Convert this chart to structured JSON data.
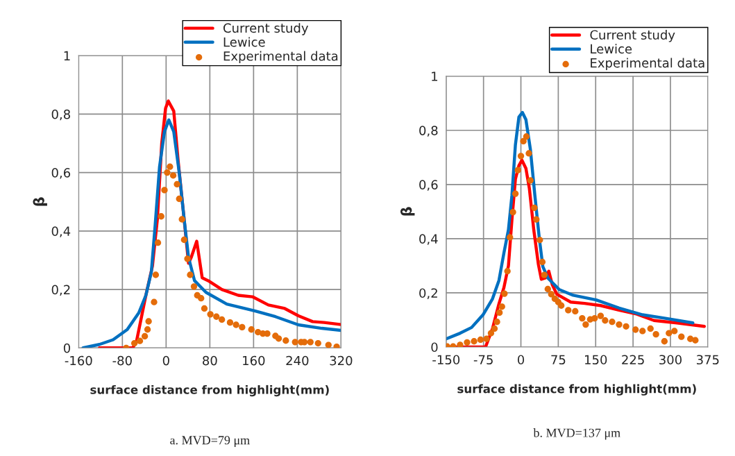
{
  "chart_data": [
    {
      "type": "line",
      "xlabel": "surface distance from highlight(mm)",
      "ylabel": "β",
      "xlim": [
        -160,
        320
      ],
      "xticks": [
        -160,
        -80,
        0,
        80,
        160,
        240,
        320
      ],
      "ylim": [
        0,
        1
      ],
      "yticks": [
        0,
        {
          "value": 0.2,
          "label": "0,2"
        },
        {
          "value": 0.4,
          "label": "0,4"
        },
        {
          "value": 0.6,
          "label": "0,6"
        },
        {
          "value": 0.8,
          "label": "0,8"
        },
        1
      ],
      "grid": true,
      "legend": "top right",
      "annotations": [
        "a. MVD=79 μm"
      ],
      "series": [
        {
          "name": "Current study",
          "color": "#ff0000",
          "x": [
            -122,
            -61,
            -54,
            -37,
            -25,
            -16,
            -8,
            -1,
            4,
            14,
            22,
            33,
            41,
            46,
            56,
            66,
            77,
            102,
            132,
            158,
            187,
            217,
            242,
            268,
            289,
            320
          ],
          "values": [
            0,
            0,
            0.024,
            0.18,
            0.28,
            0.44,
            0.7,
            0.82,
            0.845,
            0.81,
            0.64,
            0.44,
            0.29,
            0.31,
            0.365,
            0.24,
            0.23,
            0.2,
            0.18,
            0.175,
            0.147,
            0.135,
            0.11,
            0.09,
            0.087,
            0.08
          ]
        },
        {
          "name": "Lewice",
          "color": "#0070c0",
          "x": [
            -152,
            -122,
            -97,
            -71,
            -50,
            -37,
            -27,
            -20,
            -12,
            -3,
            5,
            14,
            24,
            33,
            41,
            52,
            73,
            111,
            162,
            200,
            242,
            285,
            320
          ],
          "values": [
            0,
            0.012,
            0.028,
            0.063,
            0.12,
            0.18,
            0.26,
            0.42,
            0.62,
            0.74,
            0.78,
            0.74,
            0.6,
            0.44,
            0.31,
            0.23,
            0.19,
            0.15,
            0.127,
            0.107,
            0.079,
            0.067,
            0.06
          ]
        },
        {
          "name": "Experimental data",
          "color": "#e46c0a",
          "type": "scatter",
          "marker": "circle",
          "x": [
            -73,
            -58,
            -48,
            -39,
            -34,
            -32,
            -22,
            -19,
            -15,
            -9,
            -3,
            2,
            7,
            13,
            20,
            24,
            29,
            33,
            39,
            44,
            51,
            57,
            64,
            70,
            81,
            92,
            102,
            117,
            128,
            139,
            156,
            168,
            177,
            185,
            200,
            206,
            219,
            236,
            247,
            253,
            264,
            278,
            297,
            312
          ],
          "values": [
            0,
            0.016,
            0.024,
            0.04,
            0.063,
            0.091,
            0.157,
            0.25,
            0.36,
            0.45,
            0.54,
            0.6,
            0.62,
            0.59,
            0.56,
            0.51,
            0.44,
            0.37,
            0.305,
            0.25,
            0.21,
            0.18,
            0.17,
            0.135,
            0.115,
            0.107,
            0.097,
            0.087,
            0.079,
            0.071,
            0.063,
            0.054,
            0.049,
            0.049,
            0.041,
            0.032,
            0.025,
            0.02,
            0.02,
            0.02,
            0.02,
            0.016,
            0.01,
            0.004
          ]
        }
      ]
    },
    {
      "type": "line",
      "xlabel": "surface distance from highlight(mm)",
      "ylabel": "β",
      "xlim": [
        -150,
        375
      ],
      "xticks": [
        -150,
        -75,
        0,
        75,
        150,
        225,
        300,
        375
      ],
      "ylim": [
        0,
        1
      ],
      "yticks": [
        0,
        {
          "value": 0.2,
          "label": "0,2"
        },
        {
          "value": 0.4,
          "label": "0,4"
        },
        {
          "value": 0.6,
          "label": "0,6"
        },
        {
          "value": 0.8,
          "label": "0,8"
        },
        1
      ],
      "grid": true,
      "legend": "top right",
      "annotations": [
        "b. MVD=137 μm"
      ],
      "series": [
        {
          "name": "Current study",
          "color": "#ff0000",
          "x": [
            -150,
            -71,
            -57,
            -44,
            -34,
            -25,
            -18,
            -11,
            -4,
            2,
            10,
            17,
            26,
            35,
            41,
            49,
            56,
            63,
            72,
            100,
            128,
            160,
            197,
            230,
            267,
            313,
            368
          ],
          "values": [
            0,
            0,
            0.068,
            0.16,
            0.22,
            0.3,
            0.47,
            0.62,
            0.67,
            0.69,
            0.66,
            0.585,
            0.43,
            0.306,
            0.25,
            0.255,
            0.28,
            0.23,
            0.195,
            0.166,
            0.161,
            0.153,
            0.136,
            0.123,
            0.098,
            0.089,
            0.076
          ]
        },
        {
          "name": "Lewice",
          "color": "#0070c0",
          "x": [
            -150,
            -122,
            -99,
            -76,
            -57,
            -44,
            -34,
            -25,
            -18,
            -11,
            -4,
            3,
            10,
            19,
            28,
            37,
            44,
            54,
            77,
            105,
            151,
            197,
            244,
            290,
            345
          ],
          "values": [
            0.03,
            0.051,
            0.072,
            0.119,
            0.178,
            0.246,
            0.348,
            0.433,
            0.56,
            0.747,
            0.849,
            0.866,
            0.84,
            0.73,
            0.56,
            0.4,
            0.297,
            0.255,
            0.212,
            0.191,
            0.174,
            0.144,
            0.119,
            0.106,
            0.089
          ]
        },
        {
          "name": "Experimental data",
          "color": "#e46c0a",
          "type": "scatter",
          "marker": "circle",
          "x": [
            -148,
            -136,
            -122,
            -108,
            -94,
            -81,
            -69,
            -60,
            -53,
            -48,
            -43,
            -38,
            -33,
            -27,
            -22,
            -16,
            -11,
            -6,
            0,
            5,
            11,
            16,
            19,
            27,
            31,
            38,
            43,
            47,
            54,
            61,
            68,
            75,
            81,
            95,
            109,
            123,
            130,
            139,
            148,
            160,
            169,
            183,
            197,
            211,
            230,
            244,
            260,
            271,
            288,
            297,
            308,
            322,
            340,
            350
          ],
          "values": [
            0.002,
            0.002,
            0.008,
            0.017,
            0.021,
            0.027,
            0.03,
            0.051,
            0.068,
            0.093,
            0.127,
            0.149,
            0.197,
            0.28,
            0.405,
            0.498,
            0.566,
            0.653,
            0.705,
            0.76,
            0.777,
            0.715,
            0.615,
            0.514,
            0.471,
            0.395,
            0.314,
            0.266,
            0.214,
            0.195,
            0.178,
            0.166,
            0.153,
            0.136,
            0.132,
            0.106,
            0.083,
            0.102,
            0.106,
            0.115,
            0.098,
            0.093,
            0.083,
            0.076,
            0.064,
            0.059,
            0.068,
            0.047,
            0.021,
            0.051,
            0.059,
            0.038,
            0.03,
            0.025
          ]
        }
      ]
    }
  ]
}
